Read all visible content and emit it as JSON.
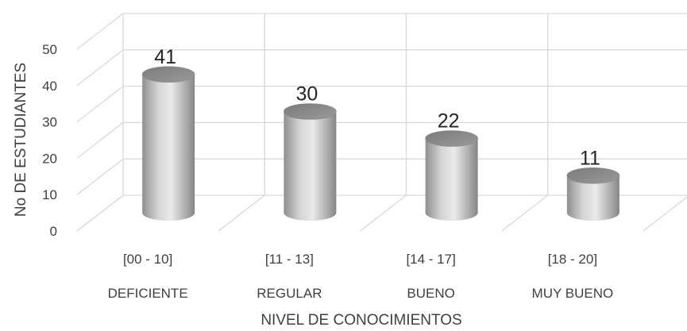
{
  "chart_data": {
    "type": "bar",
    "style": "3d-cylinder",
    "categories": [
      "[00 - 10]",
      "[11 - 13]",
      "[14 - 17]",
      "[18 - 20]"
    ],
    "category_levels": [
      "DEFICIENTE",
      "REGULAR",
      "BUENO",
      "MUY BUENO"
    ],
    "values": [
      41,
      30,
      22,
      11
    ],
    "xlabel": "NIVEL DE CONOCIMIENTOS",
    "ylabel": "No DE ESTUDIANTES",
    "ylim": [
      0,
      50
    ],
    "yticks": [
      0,
      10,
      20,
      30,
      40,
      50
    ],
    "grid": true,
    "legend": "none",
    "bar_color": "#a6a6a6",
    "grid_color": "#d9d9d9"
  }
}
